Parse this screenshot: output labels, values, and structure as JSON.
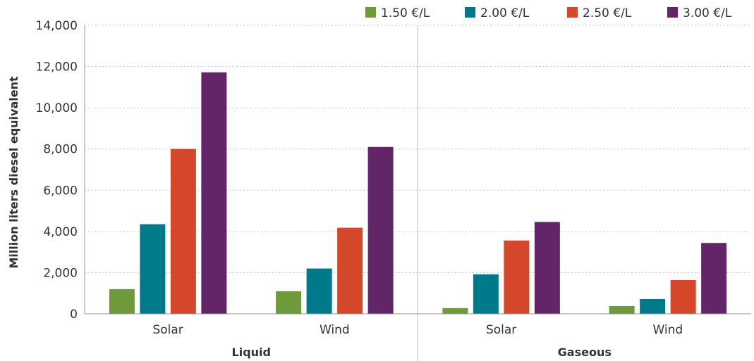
{
  "chart_data": {
    "type": "bar",
    "title": "",
    "ylabel": "Million liters diesel equivalent",
    "ylim": [
      0,
      14000
    ],
    "yticks": [
      0,
      2000,
      4000,
      6000,
      8000,
      10000,
      12000,
      14000
    ],
    "ytick_labels": [
      "0",
      "2,000",
      "4,000",
      "6,000",
      "8,000",
      "10,000",
      "12,000",
      "14,000"
    ],
    "groups": [
      {
        "label": "Liquid",
        "categories": [
          "Solar",
          "Wind"
        ]
      },
      {
        "label": "Gaseous",
        "categories": [
          "Solar",
          "Wind"
        ]
      }
    ],
    "categories": [
      "Solar",
      "Wind",
      "Solar",
      "Wind"
    ],
    "series": [
      {
        "name": "1.50 €/L",
        "color": "#6e9a3c",
        "values": [
          1200,
          1100,
          280,
          380
        ]
      },
      {
        "name": "2.00 €/L",
        "color": "#007a8a",
        "values": [
          4350,
          2200,
          1920,
          720
        ]
      },
      {
        "name": "2.50 €/L",
        "color": "#d4472a",
        "values": [
          8000,
          4180,
          3560,
          1640
        ]
      },
      {
        "name": "3.00 €/L",
        "color": "#622567",
        "values": [
          11720,
          8100,
          4460,
          3440
        ]
      }
    ],
    "grid": true,
    "legend_position": "top-right"
  }
}
